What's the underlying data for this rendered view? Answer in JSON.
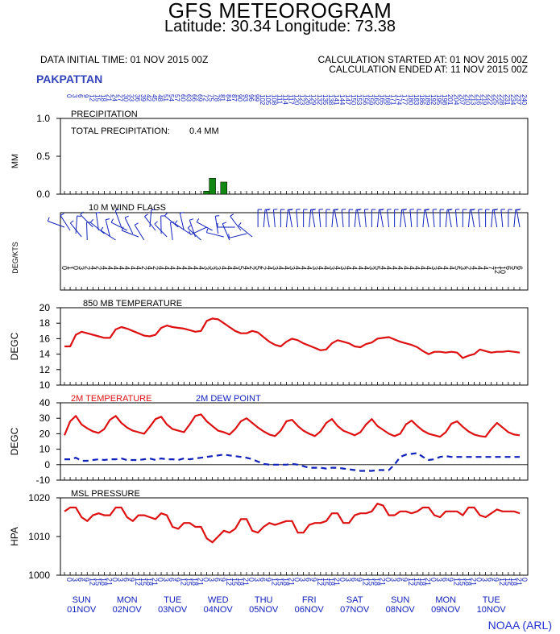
{
  "header": {
    "title": "GFS METEOROGRAM",
    "subtitle": "Latitude: 30.34 Longitude:  73.38",
    "initial_time": "DATA INITIAL TIME: 01 NOV 2015 00Z",
    "calc_started": "CALCULATION STARTED AT: 01 NOV 2015 00Z",
    "calc_ended": "CALCULATION ENDED AT: 11 NOV 2015 00Z",
    "station": "PAKPATTAN",
    "credit": "NOAA (ARL)"
  },
  "colors": {
    "temperature": "#dd1111",
    "dewpoint": "#1122bb",
    "precip": "#118811",
    "wind": "#1122bb",
    "axis": "#000000",
    "time_labels": "#1122bb"
  },
  "time_axis": {
    "hours_top": [
      "0",
      "3",
      "6",
      "9",
      "12",
      "15",
      "18",
      "21",
      "24",
      "27",
      "30",
      "33",
      "36",
      "39",
      "42",
      "45",
      "48",
      "51",
      "54",
      "57",
      "60",
      "63",
      "66",
      "69",
      "72",
      "75",
      "78",
      "81",
      "84",
      "87",
      "90",
      "93",
      "96",
      "99",
      "102",
      "105",
      "108",
      "111",
      "114",
      "117",
      "120",
      "123",
      "126",
      "129",
      "132",
      "135",
      "138",
      "141",
      "144",
      "147",
      "150",
      "153",
      "156",
      "159",
      "162",
      "165",
      "168",
      "171",
      "174",
      "177",
      "180",
      "183",
      "186",
      "189",
      "192",
      "195",
      "198",
      "201",
      "204",
      "207",
      "210",
      "213",
      "216",
      "219",
      "222",
      "225",
      "228",
      "231",
      "234",
      "237",
      "240"
    ],
    "hours_bottom": [
      "0",
      "3",
      "6",
      "9",
      "12",
      "15",
      "18",
      "21",
      "0",
      "3",
      "6",
      "9",
      "12",
      "15",
      "18",
      "21",
      "0",
      "3",
      "6",
      "9",
      "12",
      "15",
      "18",
      "21",
      "0",
      "3",
      "6",
      "9",
      "12",
      "15",
      "18",
      "21",
      "0",
      "3",
      "6",
      "9",
      "12",
      "15",
      "18",
      "21",
      "0",
      "3",
      "6",
      "9",
      "12",
      "15",
      "18",
      "21",
      "0",
      "3",
      "6",
      "9",
      "12",
      "15",
      "18",
      "21",
      "0",
      "3",
      "6",
      "9",
      "12",
      "15",
      "18",
      "21",
      "0",
      "3",
      "6",
      "9",
      "12",
      "15",
      "18",
      "21",
      "0",
      "3",
      "6",
      "9",
      "12",
      "15",
      "18",
      "21",
      "0"
    ],
    "days": [
      {
        "day": "SUN",
        "date": "01NOV"
      },
      {
        "day": "MON",
        "date": "02NOV"
      },
      {
        "day": "TUE",
        "date": "03NOV"
      },
      {
        "day": "WED",
        "date": "04NOV"
      },
      {
        "day": "THU",
        "date": "05NOV"
      },
      {
        "day": "FRI",
        "date": "06NOV"
      },
      {
        "day": "SAT",
        "date": "07NOV"
      },
      {
        "day": "SUN",
        "date": "08NOV"
      },
      {
        "day": "MON",
        "date": "09NOV"
      },
      {
        "day": "TUE",
        "date": "10NOV"
      }
    ]
  },
  "chart_data": [
    {
      "type": "bar",
      "title": "PRECIPITATION",
      "annotation_label": "TOTAL PRECIPITATION:",
      "annotation_value": "0.4 MM",
      "ylabel": "MM",
      "ylim": [
        0,
        1
      ],
      "yticks": [
        "0.0",
        "0.5",
        "1.0"
      ],
      "x": [
        72,
        75,
        78,
        81,
        84,
        87
      ],
      "values": [
        0.0,
        0.04,
        0.21,
        0.0,
        0.16,
        0.0
      ]
    },
    {
      "type": "table",
      "title": "10 M  WIND FLAGS",
      "ylabel": "DEG/KTS",
      "values_note_row": [
        "0",
        "1",
        "0",
        "3",
        "2",
        "4",
        "2",
        "4",
        "4",
        "4",
        "4",
        "4",
        "4",
        "4",
        "2",
        "4",
        "2",
        "4",
        "4",
        "4",
        "4",
        "4",
        "4",
        "4",
        "4",
        "3",
        "3",
        "3",
        "4",
        "4",
        "4",
        "5",
        "4",
        "2",
        "5",
        "2",
        "4",
        "3",
        "4",
        "4",
        "3",
        "4",
        "4",
        "4",
        "3",
        "4",
        "4",
        "3",
        "4",
        "3",
        "4",
        "4",
        "4",
        "4",
        "3",
        "5",
        "4",
        "4",
        "4",
        "4",
        "4",
        "4",
        "4",
        "4",
        "4",
        "3",
        "4",
        "4",
        "4",
        "5",
        "3",
        "2",
        "4",
        "4",
        "4",
        "7",
        "12",
        "10",
        "6",
        "5",
        "6"
      ]
    },
    {
      "type": "line",
      "title": "850 MB  TEMPERATURE",
      "ylabel": "DEGC",
      "ylim": [
        10,
        20
      ],
      "yticks": [
        "10",
        "12",
        "14",
        "16",
        "18",
        "20"
      ],
      "series": [
        {
          "name": "",
          "x": [
            0,
            3,
            6,
            9,
            12,
            15,
            18,
            21,
            24,
            27,
            30,
            33,
            36,
            39,
            42,
            45,
            48,
            51,
            54,
            57,
            60,
            63,
            66,
            69,
            72,
            75,
            78,
            81,
            84,
            87,
            90,
            93,
            96,
            99,
            102,
            105,
            108,
            111,
            114,
            117,
            120,
            123,
            126,
            129,
            132,
            135,
            138,
            141,
            144,
            147,
            150,
            153,
            156,
            159,
            162,
            165,
            168,
            171,
            174,
            177,
            180,
            183,
            186,
            189,
            192,
            195,
            198,
            201,
            204,
            207,
            210,
            213,
            216,
            219,
            222,
            225,
            228,
            231,
            234,
            237,
            240
          ],
          "values": [
            15.0,
            15.0,
            16.5,
            16.9,
            16.7,
            16.5,
            16.3,
            16.1,
            16.1,
            17.2,
            17.5,
            17.3,
            17.0,
            16.7,
            16.4,
            16.3,
            16.5,
            17.4,
            17.7,
            17.5,
            17.4,
            17.3,
            17.1,
            16.9,
            17.0,
            18.3,
            18.6,
            18.5,
            18.0,
            17.5,
            17.0,
            16.7,
            16.7,
            17.0,
            16.8,
            16.2,
            15.6,
            15.2,
            15.0,
            15.6,
            16.0,
            15.8,
            15.4,
            15.1,
            14.8,
            14.5,
            14.6,
            15.4,
            15.8,
            15.6,
            15.4,
            15.0,
            14.9,
            15.3,
            15.5,
            16.0,
            16.1,
            16.2,
            15.9,
            15.6,
            15.4,
            15.2,
            14.9,
            14.4,
            14.0,
            14.3,
            14.3,
            14.2,
            14.3,
            14.2,
            13.5,
            13.8,
            14.0,
            14.6,
            14.4,
            14.2,
            14.3,
            14.3,
            14.4,
            14.3,
            14.2
          ]
        }
      ]
    },
    {
      "type": "line",
      "title": "",
      "ylabel": "DEGC",
      "ylim": [
        -10,
        40
      ],
      "yticks": [
        "-10",
        "0",
        "10",
        "20",
        "30",
        "40"
      ],
      "series": [
        {
          "name": "2M TEMPERATURE",
          "x": [
            0,
            3,
            6,
            9,
            12,
            15,
            18,
            21,
            24,
            27,
            30,
            33,
            36,
            39,
            42,
            45,
            48,
            51,
            54,
            57,
            60,
            63,
            66,
            69,
            72,
            75,
            78,
            81,
            84,
            87,
            90,
            93,
            96,
            99,
            102,
            105,
            108,
            111,
            114,
            117,
            120,
            123,
            126,
            129,
            132,
            135,
            138,
            141,
            144,
            147,
            150,
            153,
            156,
            159,
            162,
            165,
            168,
            171,
            174,
            177,
            180,
            183,
            186,
            189,
            192,
            195,
            198,
            201,
            204,
            207,
            210,
            213,
            216,
            219,
            222,
            225,
            228,
            231,
            234,
            237,
            240
          ],
          "values": [
            19.0,
            28.0,
            31.5,
            26.0,
            23.5,
            21.5,
            20.5,
            23.0,
            29.0,
            31.5,
            27.0,
            24.0,
            22.0,
            21.0,
            20.0,
            24.5,
            29.5,
            31.0,
            26.0,
            23.0,
            22.0,
            21.0,
            26.0,
            31.5,
            32.5,
            28.0,
            25.0,
            22.0,
            21.0,
            19.5,
            23.0,
            28.0,
            30.0,
            27.0,
            24.0,
            21.5,
            19.5,
            18.5,
            22.0,
            28.0,
            29.0,
            25.0,
            22.0,
            20.0,
            18.5,
            21.5,
            27.0,
            29.5,
            25.0,
            22.0,
            20.5,
            19.0,
            21.0,
            26.0,
            29.5,
            25.0,
            22.5,
            20.0,
            18.5,
            20.0,
            26.0,
            28.5,
            25.0,
            22.0,
            20.0,
            19.0,
            18.0,
            21.0,
            26.5,
            28.0,
            24.5,
            21.5,
            19.5,
            18.5,
            18.0,
            23.0,
            27.0,
            24.0,
            21.0,
            19.5,
            19.0
          ]
        },
        {
          "name": "2M  DEW POINT",
          "x": [
            0,
            3,
            6,
            9,
            12,
            15,
            18,
            21,
            24,
            27,
            30,
            33,
            36,
            39,
            42,
            45,
            48,
            51,
            54,
            57,
            60,
            63,
            66,
            69,
            72,
            75,
            78,
            81,
            84,
            87,
            90,
            93,
            96,
            99,
            102,
            105,
            108,
            111,
            114,
            117,
            120,
            123,
            126,
            129,
            132,
            135,
            138,
            141,
            144,
            147,
            150,
            153,
            156,
            159,
            162,
            165,
            168,
            171,
            174,
            177,
            180,
            183,
            186,
            189,
            192,
            195,
            198,
            201,
            204,
            207,
            210,
            213,
            216,
            219,
            222,
            225,
            228,
            231,
            234,
            237,
            240
          ],
          "values": [
            3.5,
            3.5,
            4.5,
            2.5,
            2.5,
            3.0,
            3.5,
            3.0,
            3.5,
            3.5,
            4.0,
            3.0,
            3.0,
            3.0,
            3.5,
            4.0,
            3.0,
            4.0,
            3.5,
            3.5,
            3.0,
            4.0,
            3.5,
            4.0,
            4.5,
            5.0,
            5.5,
            6.0,
            6.5,
            6.0,
            5.5,
            5.0,
            4.5,
            3.5,
            2.0,
            0.5,
            0.0,
            0.0,
            0.0,
            0.0,
            0.5,
            0.0,
            -1.0,
            -2.0,
            -2.0,
            -2.0,
            -2.5,
            -2.0,
            -2.0,
            -2.5,
            -3.0,
            -3.5,
            -4.0,
            -4.0,
            -4.0,
            -3.5,
            -3.5,
            -3.5,
            0.0,
            5.0,
            6.5,
            7.0,
            7.5,
            5.0,
            3.0,
            3.5,
            5.0,
            5.5,
            5.0,
            5.0,
            5.0,
            5.0,
            5.0,
            5.0,
            5.0,
            5.0,
            5.0,
            5.0,
            5.0,
            5.0,
            5.0
          ]
        }
      ]
    },
    {
      "type": "line",
      "title": "MSL PRESSURE",
      "ylabel": "HPA",
      "ylim": [
        1000,
        1020
      ],
      "yticks": [
        "1000",
        "1010",
        "1020"
      ],
      "series": [
        {
          "name": "",
          "x": [
            0,
            3,
            6,
            9,
            12,
            15,
            18,
            21,
            24,
            27,
            30,
            33,
            36,
            39,
            42,
            45,
            48,
            51,
            54,
            57,
            60,
            63,
            66,
            69,
            72,
            75,
            78,
            81,
            84,
            87,
            90,
            93,
            96,
            99,
            102,
            105,
            108,
            111,
            114,
            117,
            120,
            123,
            126,
            129,
            132,
            135,
            138,
            141,
            144,
            147,
            150,
            153,
            156,
            159,
            162,
            165,
            168,
            171,
            174,
            177,
            180,
            183,
            186,
            189,
            192,
            195,
            198,
            201,
            204,
            207,
            210,
            213,
            216,
            219,
            222,
            225,
            228,
            231,
            234,
            237,
            240
          ],
          "values": [
            1016.5,
            1017.5,
            1017.5,
            1015.0,
            1014.0,
            1015.5,
            1016.0,
            1015.5,
            1015.5,
            1017.5,
            1017.5,
            1015.0,
            1014.0,
            1015.5,
            1015.5,
            1015.0,
            1014.5,
            1016.0,
            1015.5,
            1012.5,
            1012.0,
            1013.5,
            1013.5,
            1012.5,
            1012.5,
            1009.5,
            1008.5,
            1010.0,
            1011.5,
            1011.0,
            1012.0,
            1014.5,
            1014.5,
            1011.5,
            1011.0,
            1012.5,
            1013.5,
            1013.0,
            1013.5,
            1014.0,
            1014.0,
            1011.0,
            1011.0,
            1013.0,
            1013.5,
            1013.5,
            1014.0,
            1016.0,
            1016.0,
            1013.5,
            1013.5,
            1015.5,
            1016.0,
            1016.0,
            1016.5,
            1018.5,
            1018.0,
            1015.5,
            1015.5,
            1016.5,
            1016.5,
            1016.0,
            1016.5,
            1017.5,
            1017.5,
            1015.5,
            1015.0,
            1016.5,
            1016.5,
            1016.5,
            1015.5,
            1017.5,
            1017.5,
            1015.5,
            1015.0,
            1016.0,
            1017.0,
            1016.5,
            1016.5,
            1016.5,
            1016.0
          ]
        }
      ]
    }
  ]
}
